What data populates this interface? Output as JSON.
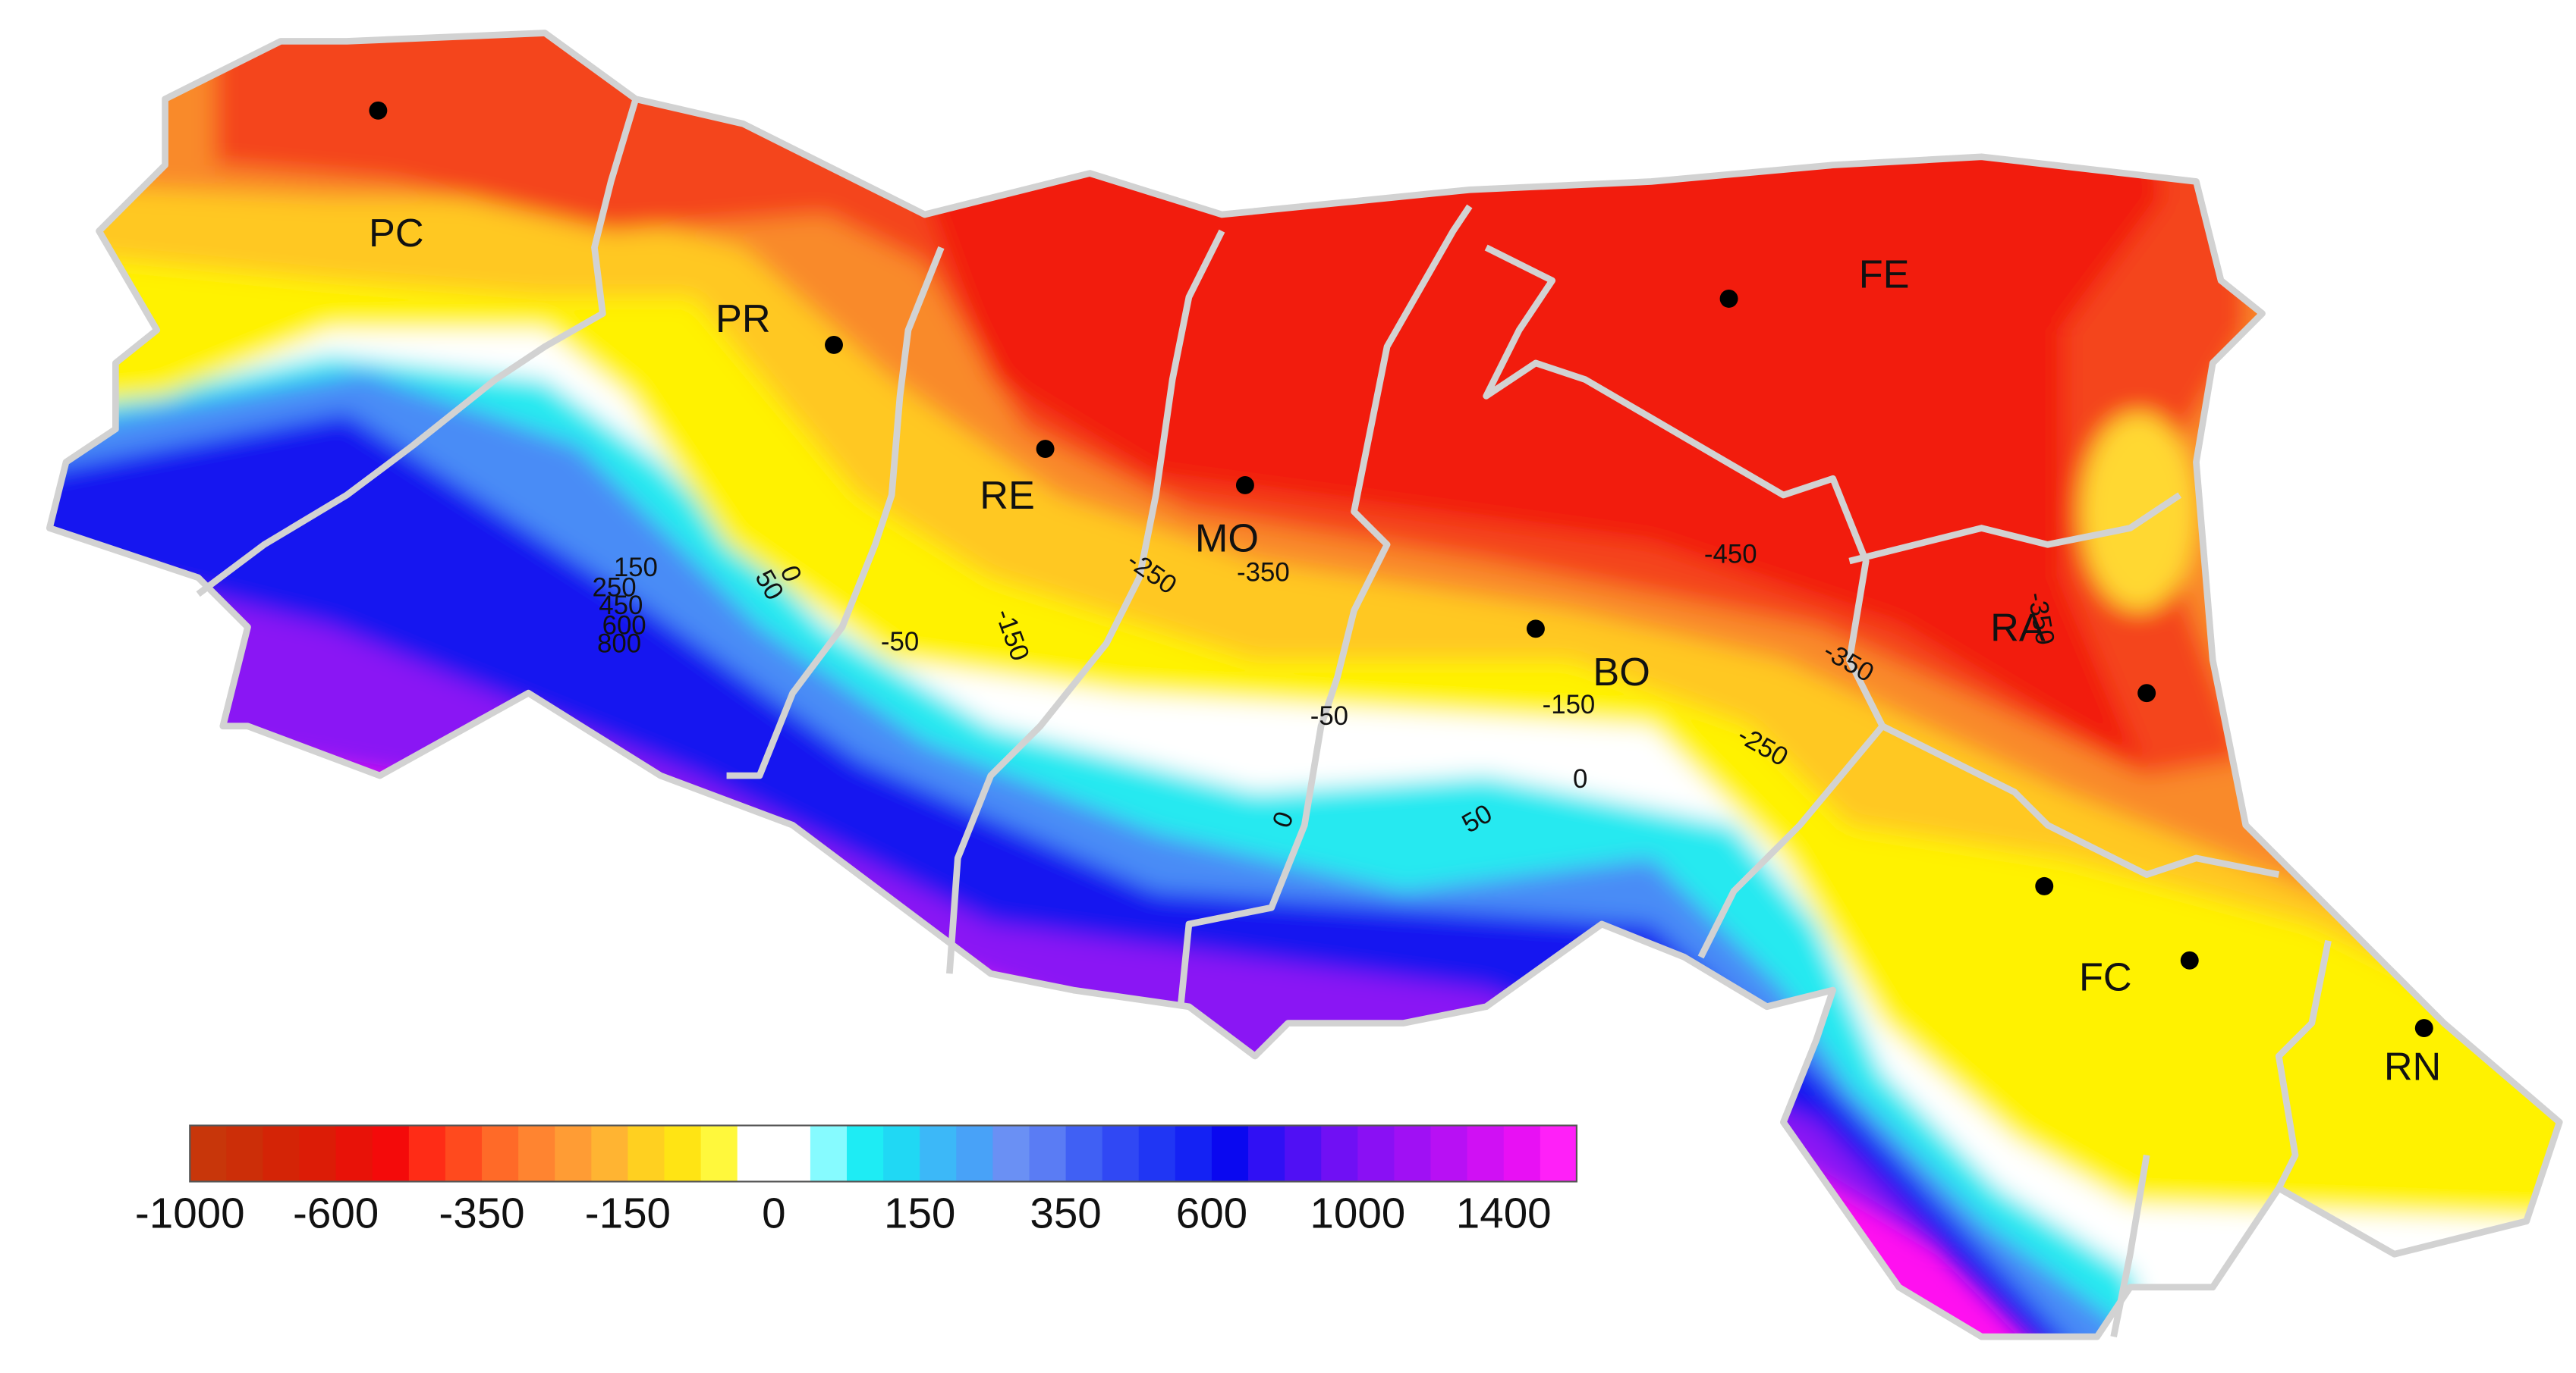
{
  "provinces": [
    {
      "label": "PC"
    },
    {
      "label": "PR"
    },
    {
      "label": "RE"
    },
    {
      "label": "MO"
    },
    {
      "label": "BO"
    },
    {
      "label": "FE"
    },
    {
      "label": "RA"
    },
    {
      "label": "FC"
    },
    {
      "label": "RN"
    }
  ],
  "contour_labels": [
    "150",
    "250",
    "450",
    "600",
    "800",
    "50",
    "0",
    "-50",
    "-150",
    "-250",
    "-350",
    "-450",
    "-350",
    "-350",
    "-150",
    "-250",
    "-50",
    "0",
    "50",
    "0"
  ],
  "colorbar": {
    "colors": [
      "#c8360a",
      "#cc2e08",
      "#d42406",
      "#dc1c06",
      "#e81208",
      "#f40a0a",
      "#ff2c16",
      "#ff4a1e",
      "#ff6a28",
      "#ff8430",
      "#ff9c34",
      "#ffb432",
      "#ffd020",
      "#ffe414",
      "#fff83c",
      "#ffffff",
      "#ffffff",
      "#86fbff",
      "#1eecf4",
      "#20d8f4",
      "#3cb8f8",
      "#48a2f8",
      "#6a90f4",
      "#5a7cf4",
      "#4060f4",
      "#3048f4",
      "#2036f4",
      "#1422f4",
      "#0a08f0",
      "#3010f4",
      "#5010f4",
      "#7010f4",
      "#8a10f4",
      "#a010f4",
      "#b810f4",
      "#d010f4",
      "#e810f4",
      "#ff20f8"
    ],
    "tick_labels": [
      "-1000",
      "-600",
      "-350",
      "-150",
      "0",
      "150",
      "350",
      "600",
      "1000",
      "1400"
    ]
  }
}
